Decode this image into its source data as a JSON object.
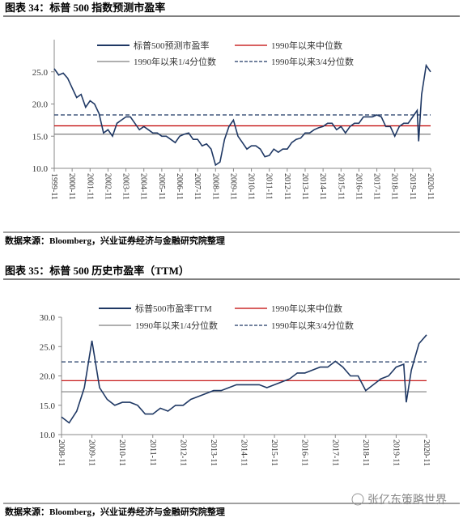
{
  "chart_data": [
    {
      "type": "line",
      "title": "图表 34：标普 500 指数预测市盈率",
      "source": "数据来源：Bloomberg，兴业证券经济与金融研究院整理",
      "x": [
        "1999-11",
        "2000-02",
        "2000-05",
        "2000-08",
        "2000-11",
        "2001-02",
        "2001-05",
        "2001-08",
        "2001-11",
        "2002-02",
        "2002-05",
        "2002-08",
        "2002-11",
        "2003-02",
        "2003-05",
        "2003-08",
        "2003-11",
        "2004-02",
        "2004-05",
        "2004-08",
        "2004-11",
        "2005-02",
        "2005-05",
        "2005-08",
        "2005-11",
        "2006-02",
        "2006-05",
        "2006-08",
        "2006-11",
        "2007-02",
        "2007-05",
        "2007-08",
        "2007-11",
        "2008-02",
        "2008-05",
        "2008-08",
        "2008-11",
        "2009-02",
        "2009-05",
        "2009-08",
        "2009-11",
        "2010-02",
        "2010-05",
        "2010-08",
        "2010-11",
        "2011-02",
        "2011-05",
        "2011-08",
        "2011-11",
        "2012-02",
        "2012-05",
        "2012-08",
        "2012-11",
        "2013-02",
        "2013-05",
        "2013-08",
        "2013-11",
        "2014-02",
        "2014-05",
        "2014-08",
        "2014-11",
        "2015-02",
        "2015-05",
        "2015-08",
        "2015-11",
        "2016-02",
        "2016-05",
        "2016-08",
        "2016-11",
        "2017-02",
        "2017-05",
        "2017-08",
        "2017-11",
        "2018-02",
        "2018-05",
        "2018-08",
        "2018-11",
        "2019-02",
        "2019-05",
        "2019-08",
        "2019-11",
        "2020-02",
        "2020-03",
        "2020-05",
        "2020-08",
        "2020-11"
      ],
      "series": [
        {
          "name": "标普500预测市盈率",
          "color": "#1f3864",
          "values": [
            25.5,
            24.5,
            24.8,
            24,
            22.5,
            21,
            21.5,
            19.5,
            20.5,
            20,
            18.5,
            15.5,
            16,
            15,
            17,
            17.5,
            18,
            18,
            17,
            16,
            16.5,
            16,
            15.5,
            15.5,
            15,
            15,
            14.5,
            14,
            15,
            15.3,
            15.5,
            14.5,
            14.5,
            13.5,
            13.8,
            13,
            10.5,
            11,
            14.5,
            16.5,
            17.5,
            15,
            14,
            13,
            13.5,
            13.5,
            13,
            11.8,
            12,
            13,
            12.5,
            13,
            13,
            14,
            14.5,
            14.7,
            15.5,
            15.5,
            16,
            16.3,
            16.5,
            17,
            17,
            16,
            16.5,
            15.5,
            16.5,
            17,
            17,
            18,
            18,
            18,
            18.3,
            18,
            16.5,
            16.5,
            15,
            16.5,
            17,
            17,
            18,
            19,
            14.2,
            21.5,
            26,
            25
          ]
        }
      ],
      "reference_lines": [
        {
          "name": "1990年以来中位数",
          "color": "#c00000",
          "value": 16.6,
          "dashed": false
        },
        {
          "name": "1990年以来1/4分位数",
          "color": "#7f7f7f",
          "value": 15.3,
          "dashed": false
        },
        {
          "name": "1990年以来3/4分位数",
          "color": "#1f3864",
          "value": 18.3,
          "dashed": true
        }
      ],
      "ylim": [
        10,
        30
      ],
      "yticks": [
        {
          "value": 10,
          "label": "10.0"
        },
        {
          "value": 15,
          "label": "15.0"
        },
        {
          "value": 20,
          "label": "20.0"
        },
        {
          "value": 25,
          "label": "25.0"
        }
      ],
      "xticks": [
        "1999-11",
        "2000-11",
        "2001-11",
        "2002-11",
        "2003-11",
        "2004-11",
        "2005-11",
        "2006-11",
        "2007-11",
        "2008-11",
        "2009-11",
        "2010-11",
        "2011-11",
        "2012-11",
        "2013-11",
        "2014-11",
        "2015-11",
        "2016-11",
        "2017-11",
        "2018-11",
        "2019-11",
        "2020-11"
      ]
    },
    {
      "type": "line",
      "title": "图表 35：标普 500 历史市盈率（TTM）",
      "source": "数据来源：Bloomberg，兴业证券经济与金融研究院整理",
      "x": [
        "2008-11",
        "2009-02",
        "2009-05",
        "2009-08",
        "2009-11",
        "2010-02",
        "2010-05",
        "2010-08",
        "2010-11",
        "2011-02",
        "2011-05",
        "2011-08",
        "2011-11",
        "2012-02",
        "2012-05",
        "2012-08",
        "2012-11",
        "2013-02",
        "2013-05",
        "2013-08",
        "2013-11",
        "2014-02",
        "2014-05",
        "2014-08",
        "2014-11",
        "2015-02",
        "2015-05",
        "2015-08",
        "2015-11",
        "2016-02",
        "2016-05",
        "2016-08",
        "2016-11",
        "2017-02",
        "2017-05",
        "2017-08",
        "2017-11",
        "2018-02",
        "2018-05",
        "2018-08",
        "2018-11",
        "2019-02",
        "2019-05",
        "2019-08",
        "2019-11",
        "2020-02",
        "2020-03",
        "2020-05",
        "2020-08",
        "2020-11"
      ],
      "series": [
        {
          "name": "标普500市盈率TTM",
          "color": "#1f3864",
          "values": [
            13,
            12,
            14,
            18,
            26,
            18,
            16,
            15,
            15.5,
            15.5,
            15,
            13.5,
            13.5,
            14.5,
            14,
            15,
            15,
            16,
            16.5,
            17,
            17.5,
            17.5,
            18,
            18.5,
            18.5,
            18.5,
            18.5,
            18,
            18.5,
            19,
            19.5,
            20.5,
            20.5,
            21,
            21.5,
            21.5,
            22.5,
            21.5,
            20,
            20,
            17.5,
            18.5,
            19.5,
            20,
            21.5,
            22,
            15.5,
            21,
            25.5,
            27
          ]
        }
      ],
      "reference_lines": [
        {
          "name": "1990年以来中位数",
          "color": "#c00000",
          "value": 19.2,
          "dashed": false
        },
        {
          "name": "1990年以来1/4分位数",
          "color": "#7f7f7f",
          "value": 17.3,
          "dashed": false
        },
        {
          "name": "1990年以来3/4分位数",
          "color": "#1f3864",
          "value": 22.4,
          "dashed": true
        }
      ],
      "ylim": [
        10,
        30
      ],
      "yticks": [
        {
          "value": 10,
          "label": "10.0"
        },
        {
          "value": 15,
          "label": "15.0"
        },
        {
          "value": 20,
          "label": "20.0"
        },
        {
          "value": 25,
          "label": "25.0"
        },
        {
          "value": 30,
          "label": "30.0"
        }
      ],
      "xticks": [
        "2008-11",
        "2009-11",
        "2010-11",
        "2011-11",
        "2012-11",
        "2013-11",
        "2014-11",
        "2015-11",
        "2016-11",
        "2017-11",
        "2018-11",
        "2019-11",
        "2020-11"
      ]
    }
  ],
  "watermark": "张亿东策略世界"
}
